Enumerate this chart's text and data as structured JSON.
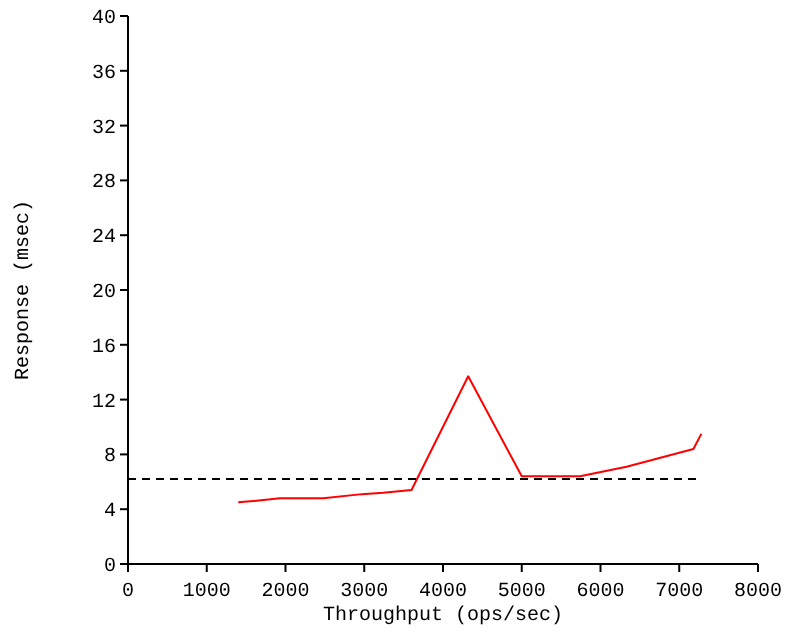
{
  "chart_data": {
    "type": "line",
    "xlabel": "Throughput (ops/sec)",
    "ylabel": "Response (msec)",
    "xlim": [
      0,
      8000
    ],
    "xticks": [
      0,
      1000,
      2000,
      3000,
      4000,
      5000,
      6000,
      7000,
      8000
    ],
    "ylim": [
      0,
      40
    ],
    "yticks": [
      0,
      4,
      8,
      12,
      16,
      20,
      24,
      28,
      32,
      36,
      40
    ],
    "grid": false,
    "marker": "none",
    "series": [
      {
        "color": "#ff0000",
        "line_style": "solid",
        "x": [
          1400,
          1590,
          1930,
          2480,
          2970,
          3240,
          3600,
          4320,
          5000,
          5740,
          6330,
          7180,
          7280
        ],
        "values": [
          4.5,
          4.6,
          4.8,
          4.8,
          5.1,
          5.2,
          5.4,
          13.7,
          6.4,
          6.4,
          7.1,
          8.4,
          9.5
        ]
      },
      {
        "color": "#000000",
        "line_style": "dashed",
        "x": [
          0,
          7280
        ],
        "values": [
          6.2,
          6.2
        ]
      }
    ]
  }
}
